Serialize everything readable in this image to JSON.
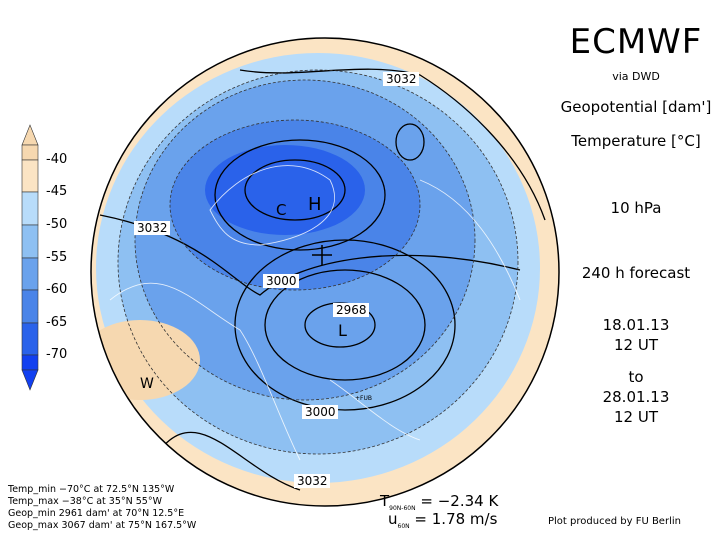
{
  "header": {
    "title": "ECMWF",
    "source": "via DWD",
    "field1": "Geopotential [dam']",
    "field2": "Temperature [°C]",
    "level": "10 hPa",
    "forecast": "240 h forecast",
    "init_date": "18.01.13",
    "init_time": "12 UT",
    "to_label": "to",
    "valid_date": "28.01.13",
    "valid_time": "12 UT"
  },
  "colorbar": {
    "labels": [
      "-40",
      "-45",
      "-50",
      "-55",
      "-60",
      "-65",
      "-70"
    ],
    "colors": [
      "#f6d8b0",
      "#fbe4c4",
      "#b8dcfa",
      "#8ec0f2",
      "#6aa2ec",
      "#4a84e8",
      "#2a62ea",
      "#1240f0"
    ]
  },
  "map": {
    "contour_labels": [
      "3032",
      "3032",
      "3000",
      "2968",
      "3000",
      "3032"
    ],
    "markers": [
      "H",
      "C",
      "L",
      "W"
    ],
    "station": "+FUB"
  },
  "stats": {
    "temp_min": "Temp_min −70°C at 72.5°N 135°W",
    "temp_max": "Temp_max −38°C at 35°N 55°W",
    "geop_min": "Geop_min 2961 dam' at 70°N 12.5°E",
    "geop_max": "Geop_max 3067 dam' at 75°N 167.5°W"
  },
  "indices": {
    "t_label": "T",
    "t_sub": "90N-60N",
    "t_value": "= −2.34 K",
    "u_label": "u",
    "u_sub": "60N",
    "u_value": "= 1.78 m/s"
  },
  "credit": "Plot produced by FU Berlin"
}
